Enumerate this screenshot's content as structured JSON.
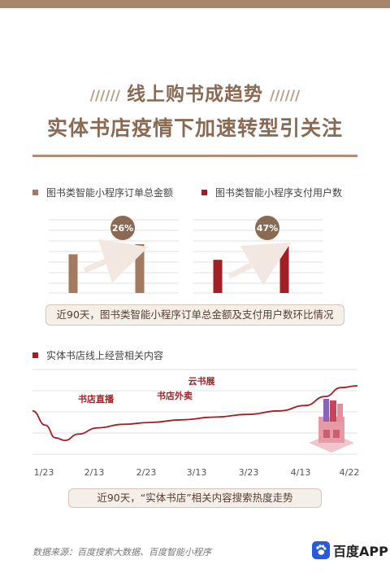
{
  "header": {
    "slashes": "//////",
    "title_line1": "线上购书成趋势",
    "title_line2": "实体书店疫情下加速转型引关注"
  },
  "legend": {
    "left": "图书类智能小程序订单总金额",
    "right": "图书类智能小程序支付用户数"
  },
  "colors": {
    "brand": "#8b6a54",
    "bar_brown": "#a37a60",
    "bar_red": "#a31f26",
    "line_red": "#a31f26"
  },
  "chart_data": [
    {
      "type": "bar",
      "categories": [
        "",
        ""
      ],
      "values": [
        1.0,
        1.26
      ],
      "growth_label": "26%"
    },
    {
      "type": "bar",
      "categories": [
        "",
        ""
      ],
      "values": [
        1.0,
        1.47
      ],
      "growth_label": "47%"
    },
    {
      "type": "line",
      "title": "实体书店线上经营相关内容",
      "x": [
        "1/23",
        "2/13",
        "2/23",
        "3/13",
        "3/23",
        "4/13",
        "4/22"
      ],
      "series": [
        {
          "points": [
            [
              0.0,
              52
            ],
            [
              0.04,
              36
            ],
            [
              0.07,
              22
            ],
            [
              0.1,
              19
            ],
            [
              0.14,
              26
            ],
            [
              0.2,
              33
            ],
            [
              0.28,
              37
            ],
            [
              0.36,
              39
            ],
            [
              0.46,
              42
            ],
            [
              0.56,
              45
            ],
            [
              0.66,
              48
            ],
            [
              0.76,
              52
            ],
            [
              0.84,
              58
            ],
            [
              0.9,
              68
            ],
            [
              0.95,
              78
            ],
            [
              1.0,
              80
            ]
          ]
        }
      ],
      "annotations": [
        "书店直播",
        "书店外卖",
        "云书展"
      ]
    }
  ],
  "captions": {
    "top": "近90天，图书类智能小程序订单总金额及支付用户数环比情况",
    "bottom": "近90天，“实体书店”相关内容搜索热度走势"
  },
  "footer": {
    "source": "数据来源：百度搜索大数据、百度智能小程序",
    "logo_text": "百度APP",
    "icon": "paw-icon"
  }
}
